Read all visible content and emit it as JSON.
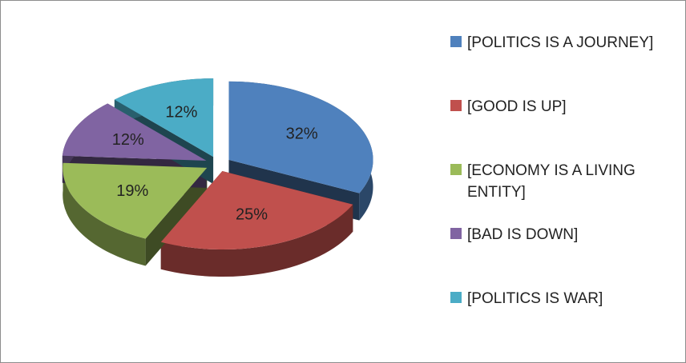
{
  "chart_data": {
    "type": "pie",
    "categories": [
      "[POLITICS IS A JOURNEY]",
      "[GOOD IS UP]",
      "[ECONOMY IS A LIVING ENTITY]",
      "[BAD IS DOWN]",
      "[POLITICS IS WAR]"
    ],
    "values": [
      32,
      25,
      19,
      12,
      12
    ],
    "value_labels": [
      "32%",
      "25%",
      "19%",
      "12%",
      "12%"
    ],
    "colors": [
      "#4f81bd",
      "#c0504d",
      "#9bbb59",
      "#8064a2",
      "#4bacc6"
    ],
    "legend": "right"
  }
}
